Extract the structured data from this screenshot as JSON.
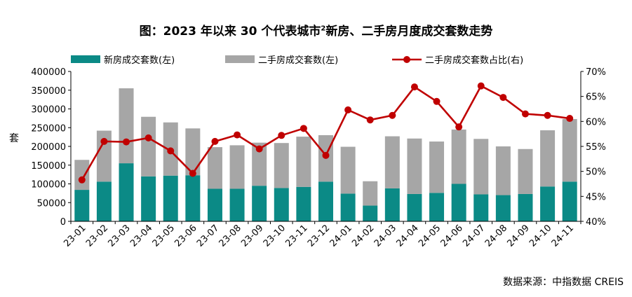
{
  "title": {
    "prefix": "图：2023 年以来 30 个代表城市",
    "superscript": "2",
    "suffix": "新房、二手房月度成交套数走势"
  },
  "source": "数据来源：中指数据 CREIS",
  "colors": {
    "new_house": "#0b8a86",
    "second_hand": "#a6a6a6",
    "ratio": "#c00000"
  },
  "chart_data": {
    "type": "bar",
    "stacked": true,
    "categories": [
      "23-01",
      "23-02",
      "23-03",
      "23-04",
      "23-05",
      "23-06",
      "23-07",
      "23-08",
      "23-09",
      "23-10",
      "23-11",
      "23-12",
      "24-01",
      "24-02",
      "24-03",
      "24-04",
      "24-05",
      "24-06",
      "24-07",
      "24-08",
      "24-09",
      "24-10",
      "24-11"
    ],
    "series": [
      {
        "name": "新房成交套数(左)",
        "kind": "bar",
        "axis": "left",
        "values": [
          84000,
          106000,
          155000,
          120000,
          122000,
          123000,
          87000,
          87000,
          95000,
          89000,
          92000,
          106000,
          74000,
          42000,
          88000,
          73000,
          76000,
          100000,
          72000,
          70000,
          73000,
          93000,
          106000
        ]
      },
      {
        "name": "二手房成交套数(左)",
        "kind": "bar",
        "axis": "left",
        "values": [
          80000,
          136000,
          200000,
          159000,
          142000,
          125000,
          111000,
          116000,
          115000,
          120000,
          134000,
          124000,
          125000,
          65000,
          139000,
          148000,
          137000,
          145000,
          148000,
          130000,
          120000,
          150000,
          167000
        ]
      },
      {
        "name": "二手房成交套数占比(右)",
        "kind": "line",
        "axis": "right",
        "values": [
          48.3,
          56.0,
          55.9,
          56.7,
          54.1,
          49.6,
          56.0,
          57.3,
          54.5,
          57.2,
          58.6,
          53.2,
          62.3,
          60.3,
          61.2,
          66.9,
          64.0,
          58.9,
          67.1,
          64.8,
          61.5,
          61.2,
          60.6
        ]
      }
    ],
    "ylabel": "套",
    "y_left": {
      "min": 0,
      "max": 400000,
      "step": 50000,
      "ticks": [
        "0",
        "50000",
        "100000",
        "150000",
        "200000",
        "250000",
        "300000",
        "350000",
        "400000"
      ]
    },
    "y_right": {
      "min": 40,
      "max": 70,
      "step": 5,
      "ticks": [
        "40%",
        "45%",
        "50%",
        "55%",
        "60%",
        "65%",
        "70%"
      ]
    },
    "grid": false,
    "legend_position": "top"
  }
}
